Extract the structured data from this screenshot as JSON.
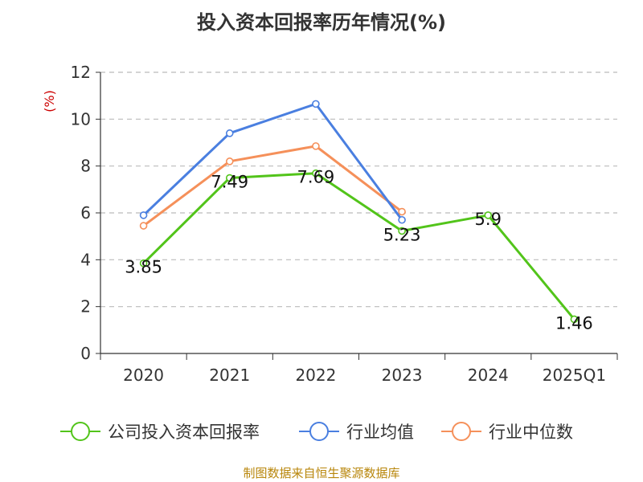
{
  "chart_data": {
    "type": "line",
    "title": "投入资本回报率历年情况(%)",
    "ylabel": "(%)",
    "xlabel": "",
    "categories": [
      "2020",
      "2021",
      "2022",
      "2023",
      "2024",
      "2025Q1"
    ],
    "ylim": [
      0,
      12
    ],
    "yticks": [
      0,
      2,
      4,
      6,
      8,
      10,
      12
    ],
    "grid": true,
    "legend_position": "bottom",
    "series": [
      {
        "name": "公司投入资本回报率",
        "color": "#52c41a",
        "values": [
          3.85,
          7.49,
          7.69,
          5.23,
          5.9,
          1.46
        ],
        "labels": [
          "3.85",
          "7.49",
          "7.69",
          "5.23",
          "5.9",
          "1.46"
        ]
      },
      {
        "name": "行业均值",
        "color": "#4a7fe0",
        "values": [
          5.9,
          9.4,
          10.65,
          5.7,
          null,
          null
        ]
      },
      {
        "name": "行业中位数",
        "color": "#f5905a",
        "values": [
          5.45,
          8.2,
          8.85,
          6.05,
          null,
          null
        ]
      }
    ]
  },
  "source_text": "制图数据来自恒生聚源数据库"
}
